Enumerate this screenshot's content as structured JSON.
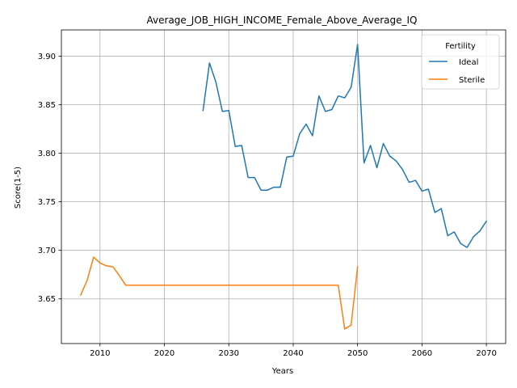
{
  "chart_data": {
    "type": "line",
    "title": "Average_JOB_HIGH_INCOME_Female_Above_Average_IQ",
    "xlabel": "Years",
    "ylabel": "Score(1-5)",
    "xlim": [
      2004,
      2073
    ],
    "ylim": [
      3.604,
      3.927
    ],
    "xticks": [
      2010,
      2020,
      2030,
      2040,
      2050,
      2060,
      2070
    ],
    "yticks": [
      3.65,
      3.7,
      3.75,
      3.8,
      3.85,
      3.9
    ],
    "ytick_labels": [
      "3.65",
      "3.70",
      "3.75",
      "3.80",
      "3.85",
      "3.90"
    ],
    "grid": true,
    "legend": {
      "title": "Fertility",
      "position": "top-right"
    },
    "series": [
      {
        "name": "Ideal",
        "color": "#1f77b4",
        "x": [
          2026,
          2027,
          2028,
          2029,
          2030,
          2031,
          2032,
          2033,
          2034,
          2035,
          2036,
          2037,
          2038,
          2039,
          2040,
          2041,
          2042,
          2043,
          2044,
          2045,
          2046,
          2047,
          2048,
          2049,
          2050,
          2051,
          2052,
          2053,
          2054,
          2055,
          2056,
          2057,
          2058,
          2059,
          2060,
          2061,
          2062,
          2063,
          2064,
          2065,
          2066,
          2067,
          2068,
          2069,
          2070
        ],
        "y": [
          3.844,
          3.893,
          3.873,
          3.843,
          3.844,
          3.807,
          3.808,
          3.775,
          3.775,
          3.762,
          3.762,
          3.765,
          3.765,
          3.796,
          3.797,
          3.82,
          3.83,
          3.818,
          3.859,
          3.843,
          3.845,
          3.859,
          3.857,
          3.868,
          3.912,
          3.79,
          3.808,
          3.785,
          3.81,
          3.797,
          3.792,
          3.783,
          3.77,
          3.772,
          3.761,
          3.763,
          3.739,
          3.743,
          3.715,
          3.719,
          3.707,
          3.703,
          3.714,
          3.72,
          3.73
        ]
      },
      {
        "name": "Sterile",
        "color": "#ff7f0e",
        "x": [
          2007,
          2008,
          2009,
          2010,
          2011,
          2012,
          2013,
          2014,
          2015,
          2016,
          2017,
          2018,
          2019,
          2020,
          2021,
          2022,
          2023,
          2024,
          2025,
          2026,
          2027,
          2028,
          2029,
          2030,
          2031,
          2032,
          2033,
          2034,
          2035,
          2036,
          2037,
          2038,
          2039,
          2040,
          2041,
          2042,
          2043,
          2044,
          2045,
          2046,
          2047,
          2048,
          2049,
          2050
        ],
        "y": [
          3.654,
          3.669,
          3.693,
          3.687,
          3.684,
          3.683,
          3.674,
          3.664,
          3.664,
          3.664,
          3.664,
          3.664,
          3.664,
          3.664,
          3.664,
          3.664,
          3.664,
          3.664,
          3.664,
          3.664,
          3.664,
          3.664,
          3.664,
          3.664,
          3.664,
          3.664,
          3.664,
          3.664,
          3.664,
          3.664,
          3.664,
          3.664,
          3.664,
          3.664,
          3.664,
          3.664,
          3.664,
          3.664,
          3.664,
          3.664,
          3.664,
          3.619,
          3.623,
          3.683
        ]
      }
    ]
  }
}
